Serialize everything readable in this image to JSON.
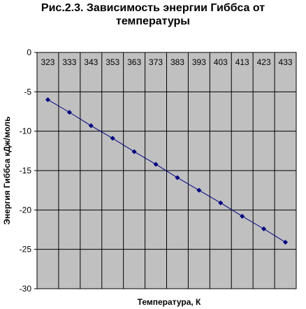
{
  "chart_data": {
    "type": "line",
    "title_line1": "Рис.2.3. Зависимость энергии Гиббса от",
    "title_line2": "температуры",
    "xlabel": "Температура, К",
    "ylabel": "Энергия Гиббса кДж/моль",
    "categories": [
      "323",
      "333",
      "343",
      "353",
      "363",
      "373",
      "383",
      "393",
      "403",
      "413",
      "423",
      "433"
    ],
    "x_position": "top",
    "yticks": [
      0,
      -5,
      -10,
      -15,
      -20,
      -25,
      -30
    ],
    "ylim": [
      -30,
      0
    ],
    "grid": true,
    "series": [
      {
        "values": [
          -6.0,
          -7.6,
          -9.3,
          -10.9,
          -12.6,
          -14.2,
          -15.9,
          -17.5,
          -19.1,
          -20.8,
          -22.4,
          -24.1
        ],
        "color": "#000080",
        "marker": "diamond"
      }
    ],
    "colors": {
      "plot_background": "#c0c0c0",
      "gridlines": "#000000",
      "series": "#000080"
    }
  }
}
